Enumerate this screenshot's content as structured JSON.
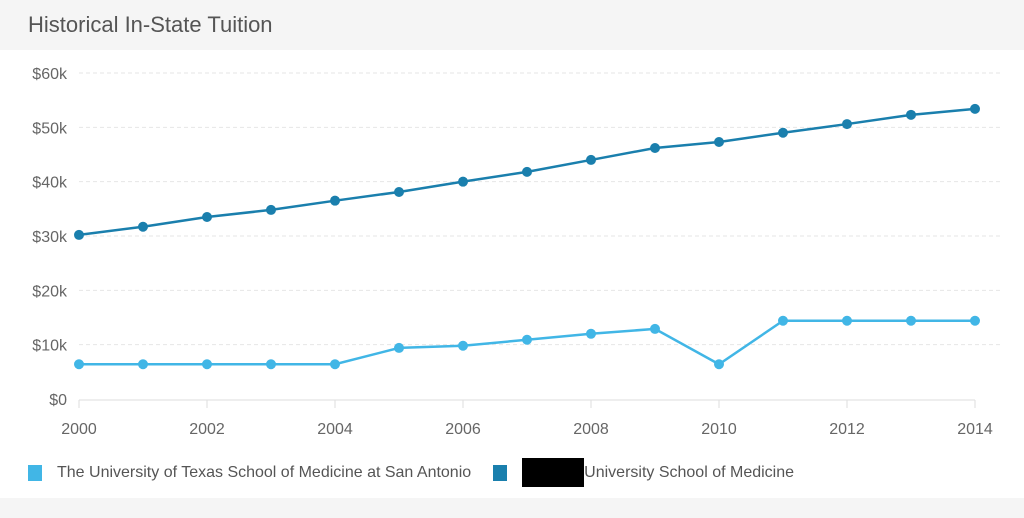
{
  "header": {
    "title": "Historical In-State Tuition"
  },
  "chart_data": {
    "type": "line",
    "title": "Historical In-State Tuition",
    "x": [
      2000,
      2001,
      2002,
      2003,
      2004,
      2005,
      2006,
      2007,
      2008,
      2009,
      2010,
      2011,
      2012,
      2013,
      2014
    ],
    "xticks": [
      "2000",
      "2002",
      "2004",
      "2006",
      "2008",
      "2010",
      "2012",
      "2014"
    ],
    "yticks": [
      "$0",
      "$10k",
      "$20k",
      "$30k",
      "$40k",
      "$50k",
      "$60k"
    ],
    "ylim": [
      0,
      60000
    ],
    "xlim": [
      2000,
      2014
    ],
    "grid": true,
    "legend": "bottom-left",
    "series": [
      {
        "name": "The University of Texas School of Medicine at San Antonio",
        "color": "#41b6e6",
        "values": [
          6400,
          6400,
          6400,
          6400,
          6400,
          9400,
          9800,
          10900,
          12000,
          12900,
          6400,
          14400,
          14400,
          14400,
          14400
        ]
      },
      {
        "name": "University School of Medicine",
        "color": "#1a7fad",
        "values": [
          30200,
          31700,
          33500,
          34800,
          36500,
          38100,
          40000,
          41800,
          44000,
          46200,
          47300,
          49000,
          50600,
          52300,
          53400
        ]
      }
    ]
  }
}
